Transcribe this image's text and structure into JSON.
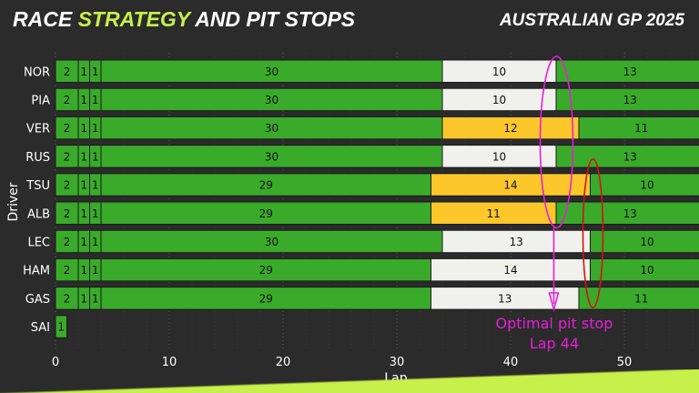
{
  "header": {
    "title_part1": "RACE ",
    "title_accent": "STRATEGY",
    "title_part2": " AND PIT STOPS",
    "subtitle": "AUSTRALIAN GP 2025"
  },
  "colors": {
    "background": "#2b2b2b",
    "accent": "#c8f04a",
    "intermediate": "#3aaa2a",
    "medium": "#fcc72b",
    "hard": "#f0f0ec",
    "annotation": "#e81ed8",
    "ellipse_red": "#d21414"
  },
  "chart_data": {
    "type": "bar",
    "orientation": "horizontal-stacked",
    "xlabel": "Lap",
    "ylabel": "Driver",
    "xlim": [
      0,
      57
    ],
    "xticks": [
      0,
      10,
      20,
      30,
      40,
      50
    ],
    "grid": true,
    "drivers": [
      {
        "name": "NOR",
        "stints": [
          {
            "laps": 2,
            "compound": "intermediate"
          },
          {
            "laps": 1,
            "compound": "intermediate"
          },
          {
            "laps": 1,
            "compound": "intermediate"
          },
          {
            "laps": 30,
            "compound": "intermediate"
          },
          {
            "laps": 10,
            "compound": "hard"
          },
          {
            "laps": 13,
            "compound": "intermediate"
          }
        ]
      },
      {
        "name": "PIA",
        "stints": [
          {
            "laps": 2,
            "compound": "intermediate"
          },
          {
            "laps": 1,
            "compound": "intermediate"
          },
          {
            "laps": 1,
            "compound": "intermediate"
          },
          {
            "laps": 30,
            "compound": "intermediate"
          },
          {
            "laps": 10,
            "compound": "hard"
          },
          {
            "laps": 13,
            "compound": "intermediate"
          }
        ]
      },
      {
        "name": "VER",
        "stints": [
          {
            "laps": 2,
            "compound": "intermediate"
          },
          {
            "laps": 1,
            "compound": "intermediate"
          },
          {
            "laps": 1,
            "compound": "intermediate"
          },
          {
            "laps": 30,
            "compound": "intermediate"
          },
          {
            "laps": 12,
            "compound": "medium"
          },
          {
            "laps": 11,
            "compound": "intermediate"
          }
        ]
      },
      {
        "name": "RUS",
        "stints": [
          {
            "laps": 2,
            "compound": "intermediate"
          },
          {
            "laps": 1,
            "compound": "intermediate"
          },
          {
            "laps": 1,
            "compound": "intermediate"
          },
          {
            "laps": 30,
            "compound": "intermediate"
          },
          {
            "laps": 10,
            "compound": "hard"
          },
          {
            "laps": 13,
            "compound": "intermediate"
          }
        ]
      },
      {
        "name": "TSU",
        "stints": [
          {
            "laps": 2,
            "compound": "intermediate"
          },
          {
            "laps": 1,
            "compound": "intermediate"
          },
          {
            "laps": 1,
            "compound": "intermediate"
          },
          {
            "laps": 29,
            "compound": "intermediate"
          },
          {
            "laps": 14,
            "compound": "medium"
          },
          {
            "laps": 10,
            "compound": "intermediate"
          }
        ]
      },
      {
        "name": "ALB",
        "stints": [
          {
            "laps": 2,
            "compound": "intermediate"
          },
          {
            "laps": 1,
            "compound": "intermediate"
          },
          {
            "laps": 1,
            "compound": "intermediate"
          },
          {
            "laps": 29,
            "compound": "intermediate"
          },
          {
            "laps": 11,
            "compound": "medium"
          },
          {
            "laps": 13,
            "compound": "intermediate"
          }
        ]
      },
      {
        "name": "LEC",
        "stints": [
          {
            "laps": 2,
            "compound": "intermediate"
          },
          {
            "laps": 1,
            "compound": "intermediate"
          },
          {
            "laps": 1,
            "compound": "intermediate"
          },
          {
            "laps": 30,
            "compound": "intermediate"
          },
          {
            "laps": 13,
            "compound": "hard"
          },
          {
            "laps": 10,
            "compound": "intermediate"
          }
        ]
      },
      {
        "name": "HAM",
        "stints": [
          {
            "laps": 2,
            "compound": "intermediate"
          },
          {
            "laps": 1,
            "compound": "intermediate"
          },
          {
            "laps": 1,
            "compound": "intermediate"
          },
          {
            "laps": 29,
            "compound": "intermediate"
          },
          {
            "laps": 14,
            "compound": "hard"
          },
          {
            "laps": 10,
            "compound": "intermediate"
          }
        ]
      },
      {
        "name": "GAS",
        "stints": [
          {
            "laps": 2,
            "compound": "intermediate"
          },
          {
            "laps": 1,
            "compound": "intermediate"
          },
          {
            "laps": 1,
            "compound": "intermediate"
          },
          {
            "laps": 29,
            "compound": "intermediate"
          },
          {
            "laps": 13,
            "compound": "hard"
          },
          {
            "laps": 11,
            "compound": "intermediate"
          }
        ]
      },
      {
        "name": "SAI",
        "stints": [
          {
            "laps": 1,
            "compound": "intermediate"
          }
        ]
      }
    ],
    "annotations": [
      {
        "label_line1": "Optimal pit stop",
        "label_line2": "Lap 44",
        "lap": 43.8,
        "color": "magenta",
        "highlight_drivers": [
          "NOR",
          "ALB"
        ]
      },
      {
        "lap": 47,
        "color": "red",
        "highlight_drivers": [
          "TSU",
          "GAS"
        ]
      }
    ]
  }
}
